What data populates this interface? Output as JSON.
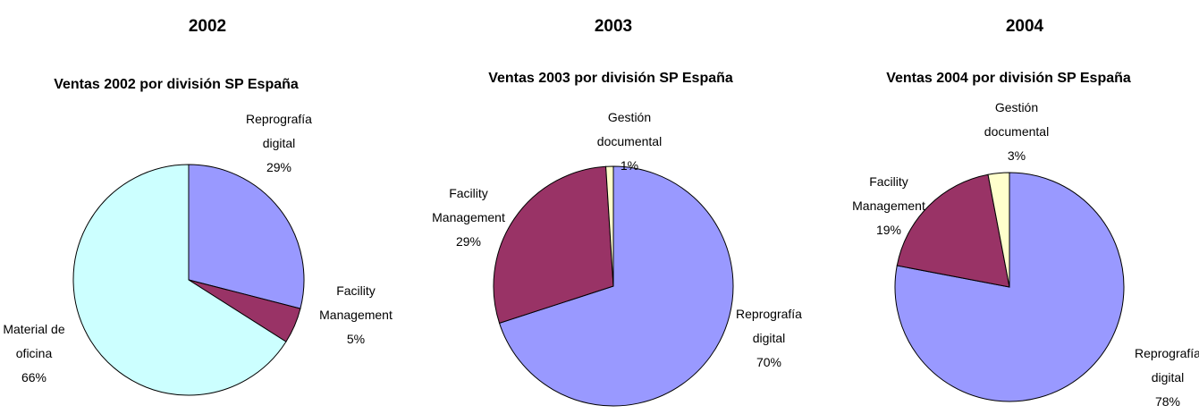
{
  "chart_data": [
    {
      "type": "pie",
      "heading": "2002",
      "title": "Ventas 2002 por división SP España",
      "categories": [
        "Reprografía digital",
        "Facility Management",
        "Material de oficina"
      ],
      "values": [
        29,
        5,
        66
      ],
      "value_labels": [
        "29%",
        "5%",
        "66%"
      ],
      "colors": [
        "#9999ff",
        "#993366",
        "#ccffff"
      ]
    },
    {
      "type": "pie",
      "heading": "2003",
      "title": "Ventas 2003 por división SP España",
      "categories": [
        "Reprografía digital",
        "Facility Management",
        "Gestión documental"
      ],
      "values": [
        70,
        29,
        1
      ],
      "value_labels": [
        "70%",
        "29%",
        "1%"
      ],
      "colors": [
        "#9999ff",
        "#993366",
        "#ffffcc"
      ]
    },
    {
      "type": "pie",
      "heading": "2004",
      "title": "Ventas 2004 por división SP España",
      "categories": [
        "Reprografía digital",
        "Facility Management",
        "Gestión documental"
      ],
      "values": [
        78,
        19,
        3
      ],
      "value_labels": [
        "78%",
        "19%",
        "3%"
      ],
      "colors": [
        "#9999ff",
        "#993366",
        "#ffffcc"
      ]
    }
  ]
}
